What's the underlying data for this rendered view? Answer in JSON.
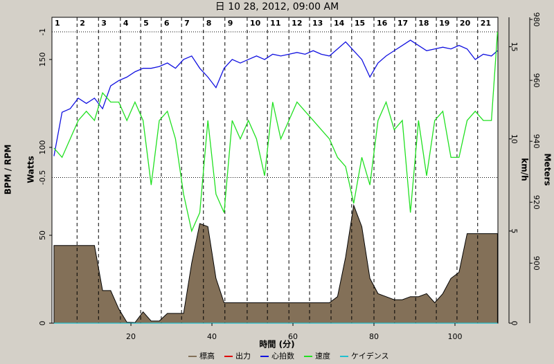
{
  "chart_data": {
    "type": "line",
    "title": "日 10 28, 2012, 09:00 AM",
    "x_label": "時間 (分)",
    "y_label": "BPM / RPM",
    "watts_label": "Watts",
    "y2_label": "km/h",
    "y3_label": "Meters",
    "xlim": [
      0.5,
      110.6
    ],
    "xticks": [
      20,
      40,
      60,
      80,
      100
    ],
    "ylim": [
      0,
      174
    ],
    "yticks": [
      0,
      50,
      100,
      150
    ],
    "wattslim": [
      0,
      1.05
    ],
    "wattsticks": [
      {
        "value": 1,
        "label": "-1"
      },
      {
        "value": 0.5,
        "label": "-0.5"
      }
    ],
    "y2lim": [
      0,
      16.6
    ],
    "y2ticks": [
      0,
      5,
      10,
      15
    ],
    "y3lim": [
      880.3,
      980.7
    ],
    "y3ticks": [
      900,
      920,
      940,
      960,
      980
    ],
    "grid": true,
    "laps": {
      "x": [
        0.5,
        6.7,
        12,
        17.4,
        22.4,
        27.5,
        32.5,
        37.9,
        43.2,
        48.7,
        53.7,
        59,
        64.1,
        69.4,
        74.5,
        80,
        85.1,
        90.3,
        95.4,
        100.5,
        105.6
      ],
      "labels": [
        "1",
        "2",
        "3",
        "4",
        "5",
        "6",
        "7",
        "8",
        "9",
        "10",
        "11",
        "12",
        "13",
        "14",
        "15",
        "16",
        "17",
        "18",
        "19",
        "20",
        "21"
      ]
    },
    "x": [
      1,
      3,
      5,
      7,
      9,
      11,
      13,
      15,
      17,
      19,
      21,
      23,
      25,
      27,
      29,
      31,
      33,
      35,
      37,
      39,
      41,
      43,
      45,
      47,
      49,
      51,
      53,
      55,
      57,
      59,
      61,
      63,
      65,
      67,
      69,
      71,
      73,
      75,
      77,
      79,
      81,
      83,
      85,
      87,
      89,
      91,
      93,
      95,
      97,
      99,
      101,
      103,
      105,
      107,
      109,
      110.5
    ],
    "series": [
      {
        "name": "標高",
        "color": "#837058",
        "axis": "y3",
        "style": "area",
        "values": [
          905.8,
          905.8,
          905.8,
          905.8,
          905.8,
          905.8,
          891,
          891,
          885,
          880.6,
          880.5,
          884,
          881,
          881,
          883.5,
          883.5,
          883.5,
          900,
          913,
          912,
          895,
          887,
          887,
          887,
          887,
          887,
          887,
          887,
          887,
          887,
          887,
          887,
          887,
          887,
          887,
          889,
          902,
          919,
          912,
          895,
          890,
          889,
          888,
          888,
          889,
          889,
          890,
          887,
          890,
          895,
          897,
          909.7,
          909.7,
          909.7,
          909.7,
          909.7
        ]
      },
      {
        "name": "出力",
        "color": "#e00000",
        "axis": "watts"
      },
      {
        "name": "心拍数",
        "color": "#1010e0",
        "axis": "y",
        "values": [
          95,
          120,
          122,
          128,
          125,
          128,
          122,
          135,
          138,
          140,
          143,
          145,
          145,
          146,
          148,
          145,
          150,
          152,
          145,
          140,
          134,
          145,
          150,
          148,
          150,
          152,
          150,
          153,
          152,
          153,
          154,
          153,
          155,
          153,
          152,
          156,
          160,
          155,
          150,
          140,
          148,
          152,
          155,
          158,
          161,
          158,
          155,
          156,
          157,
          156,
          158,
          156,
          150,
          153,
          152,
          155
        ]
      },
      {
        "name": "速度",
        "color": "#20e020",
        "axis": "y2",
        "values": [
          9.5,
          9,
          10,
          11,
          11.5,
          11,
          12.5,
          12,
          12,
          11,
          12,
          11,
          7.5,
          11,
          11.5,
          10,
          7,
          5,
          6,
          11,
          7,
          6,
          11,
          10,
          11,
          10,
          8,
          12,
          10,
          11,
          12,
          11.5,
          11,
          10.5,
          10,
          9,
          8.5,
          6.5,
          9,
          7.5,
          11,
          12,
          10.5,
          11,
          6,
          11,
          8,
          11,
          11.5,
          9,
          9,
          11,
          11.5,
          11,
          11,
          15.8
        ]
      },
      {
        "name": "ケイデンス",
        "color": "#20c0d0",
        "axis": "y",
        "values": [
          0,
          0,
          0,
          0,
          0,
          0,
          0,
          0,
          0,
          0,
          0,
          0,
          0,
          0,
          0,
          0,
          0,
          0,
          0,
          0,
          0,
          0,
          0,
          0,
          0,
          0,
          0,
          0,
          0,
          0,
          0,
          0,
          0,
          0,
          0,
          0,
          0,
          0,
          0,
          0,
          0,
          0,
          0,
          0,
          0,
          0,
          0,
          0,
          0,
          0,
          0,
          0,
          0,
          0,
          0,
          0
        ]
      }
    ]
  }
}
